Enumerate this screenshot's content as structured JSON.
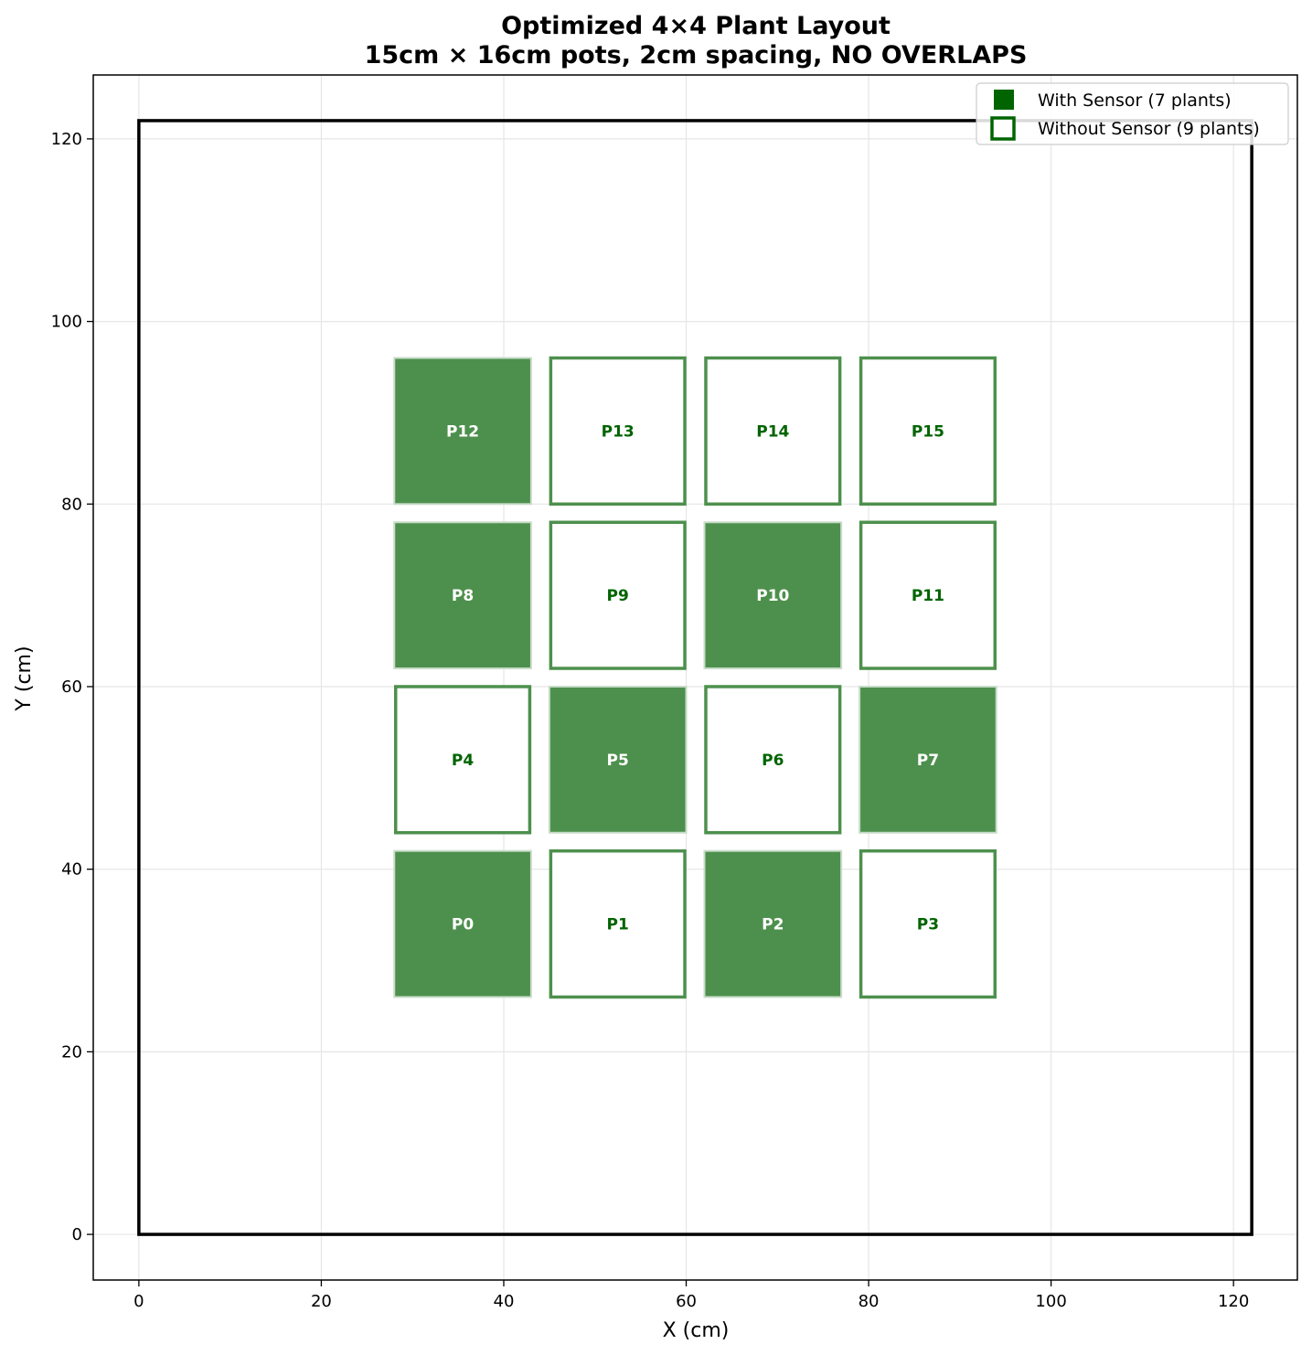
{
  "chart_data": {
    "type": "scatter",
    "title": "Optimized 4×4 Plant Layout",
    "subtitle": "15cm × 16cm pots, 2cm spacing, NO OVERLAPS",
    "xlabel": "X (cm)",
    "ylabel": "Y (cm)",
    "xlim": [
      -5,
      127
    ],
    "ylim": [
      -5,
      127
    ],
    "xticks": [
      0,
      20,
      40,
      60,
      80,
      100,
      120
    ],
    "yticks": [
      0,
      20,
      40,
      60,
      80,
      100,
      120
    ],
    "grid": true,
    "legend_position": "top-right",
    "colors": {
      "sensor_fill": "#4d904d",
      "sensor_edge": "#c8dcc8",
      "nosensor_edge": "#4d904d",
      "legend_green": "#006400",
      "text_green": "#006400",
      "boundary": "#000000"
    },
    "boundary": {
      "x0": 0,
      "y0": 0,
      "x1": 122,
      "y1": 122
    },
    "legend": [
      {
        "label": "With Sensor (7 plants)",
        "kind": "sensor"
      },
      {
        "label": "Without Sensor (9 plants)",
        "kind": "nosensor"
      }
    ],
    "plants": [
      {
        "id": "P0",
        "x0": 28,
        "x1": 43,
        "y0": 26,
        "y1": 42,
        "sensor": true
      },
      {
        "id": "P1",
        "x0": 45,
        "x1": 60,
        "y0": 26,
        "y1": 42,
        "sensor": false
      },
      {
        "id": "P2",
        "x0": 62,
        "x1": 77,
        "y0": 26,
        "y1": 42,
        "sensor": true
      },
      {
        "id": "P3",
        "x0": 79,
        "x1": 94,
        "y0": 26,
        "y1": 42,
        "sensor": false
      },
      {
        "id": "P4",
        "x0": 28,
        "x1": 43,
        "y0": 44,
        "y1": 60,
        "sensor": false
      },
      {
        "id": "P5",
        "x0": 45,
        "x1": 60,
        "y0": 44,
        "y1": 60,
        "sensor": true
      },
      {
        "id": "P6",
        "x0": 62,
        "x1": 77,
        "y0": 44,
        "y1": 60,
        "sensor": false
      },
      {
        "id": "P7",
        "x0": 79,
        "x1": 94,
        "y0": 44,
        "y1": 60,
        "sensor": true
      },
      {
        "id": "P8",
        "x0": 28,
        "x1": 43,
        "y0": 62,
        "y1": 78,
        "sensor": true
      },
      {
        "id": "P9",
        "x0": 45,
        "x1": 60,
        "y0": 62,
        "y1": 78,
        "sensor": false
      },
      {
        "id": "P10",
        "x0": 62,
        "x1": 77,
        "y0": 62,
        "y1": 78,
        "sensor": true
      },
      {
        "id": "P11",
        "x0": 79,
        "x1": 94,
        "y0": 62,
        "y1": 78,
        "sensor": false
      },
      {
        "id": "P12",
        "x0": 28,
        "x1": 43,
        "y0": 80,
        "y1": 96,
        "sensor": true
      },
      {
        "id": "P13",
        "x0": 45,
        "x1": 60,
        "y0": 80,
        "y1": 96,
        "sensor": false
      },
      {
        "id": "P14",
        "x0": 62,
        "x1": 77,
        "y0": 80,
        "y1": 96,
        "sensor": false
      },
      {
        "id": "P15",
        "x0": 79,
        "x1": 94,
        "y0": 80,
        "y1": 96,
        "sensor": false
      }
    ]
  }
}
